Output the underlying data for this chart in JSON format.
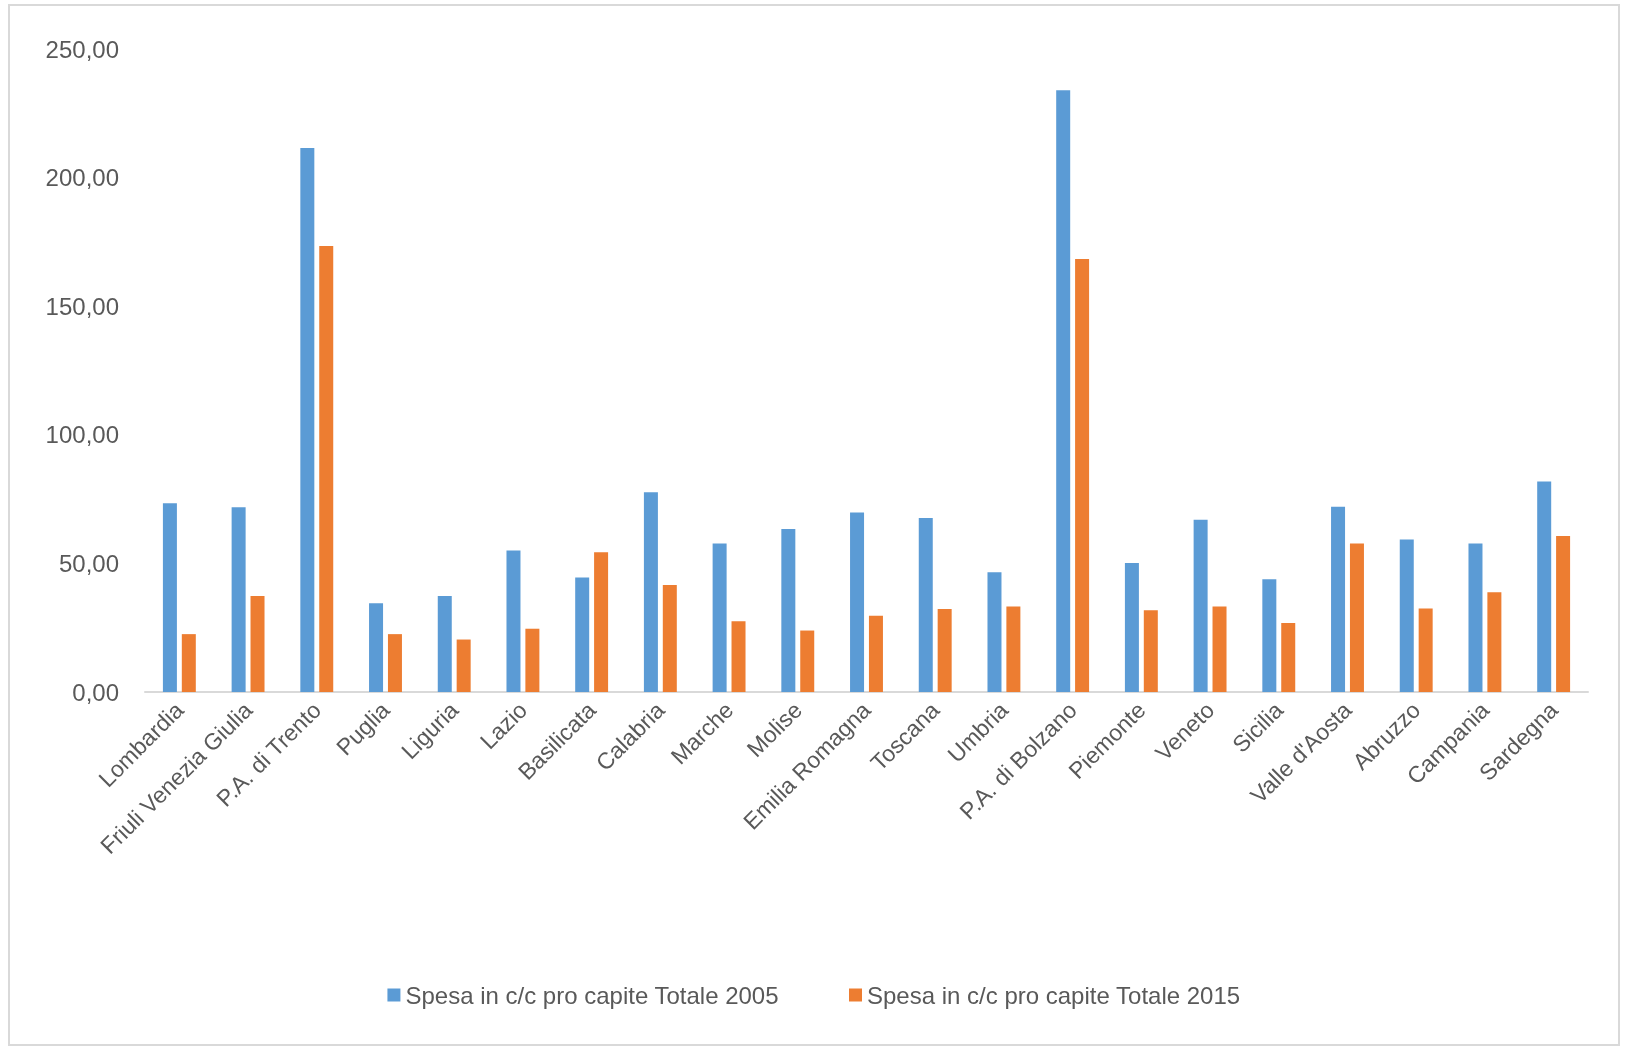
{
  "chart_data": {
    "type": "bar",
    "categories": [
      "Lombardia",
      "Friuli Venezia Giulia",
      "P.A. di Trento",
      "Puglia",
      "Liguria",
      "Lazio",
      "Basilicata",
      "Calabria",
      "Marche",
      "Molise",
      "Emilia Romagna",
      "Toscana",
      "Umbria",
      "P.A. di Bolzano",
      "Piemonte",
      "Veneto",
      "Sicilia",
      "Valle d'Aosta",
      "Abruzzo",
      "Campania",
      "Sardegna"
    ],
    "series": [
      {
        "name": "Spesa in c/c pro capite Totale 2005",
        "color": "#5b9bd5",
        "values": [
          73.4,
          71.8,
          211.5,
          34.5,
          37.3,
          55.0,
          44.5,
          77.7,
          57.7,
          63.4,
          69.8,
          67.7,
          46.6,
          234.0,
          50.2,
          67.0,
          43.8,
          72.0,
          59.3,
          57.7,
          81.8
        ]
      },
      {
        "name": "Spesa in c/c pro capite Totale 2015",
        "color": "#ed7d31",
        "values": [
          22.5,
          37.3,
          173.4,
          22.5,
          20.4,
          24.6,
          54.3,
          41.6,
          27.5,
          23.9,
          29.6,
          32.3,
          33.2,
          168.4,
          31.8,
          33.2,
          26.8,
          57.7,
          32.5,
          38.8,
          60.7
        ]
      }
    ],
    "ylim": [
      0,
      250
    ],
    "yticks": [
      {
        "value": 0,
        "label": "0,00"
      },
      {
        "value": 50,
        "label": "50,00"
      },
      {
        "value": 100,
        "label": "100,00"
      },
      {
        "value": 150,
        "label": "150,00"
      },
      {
        "value": 200,
        "label": "200,00"
      },
      {
        "value": 250,
        "label": "250,00"
      }
    ],
    "grid": false,
    "legend": "bottom"
  }
}
